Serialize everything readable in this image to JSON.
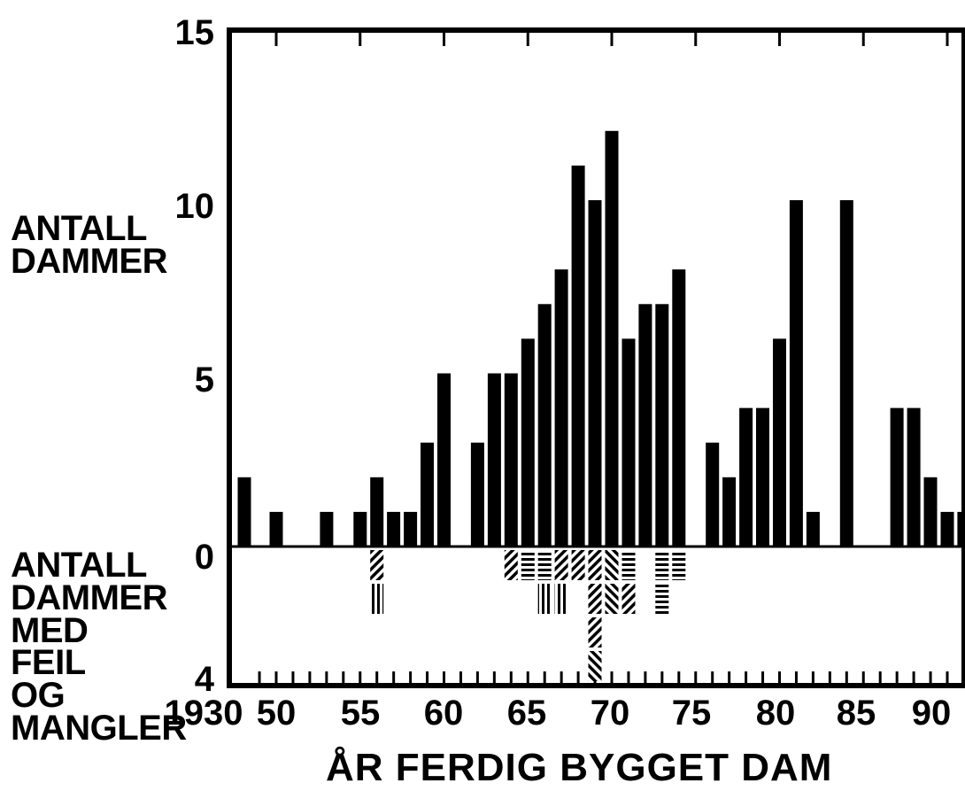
{
  "labels": {
    "ylabel_upper": [
      "ANTALL",
      "DAMMER"
    ],
    "ylabel_lower": [
      "ANTALL",
      "DAMMER",
      "MED",
      "FEIL",
      "OG",
      "MANGLER"
    ],
    "xlabel": "ÅR FERDIG BYGGET DAM"
  },
  "colors": {
    "bars": "#000000",
    "background": "#ffffff"
  },
  "chart_data": {
    "type": "bar",
    "xlabel": "ÅR FERDIG BYGGET DAM",
    "ylabel_upper": "ANTALL DAMMER",
    "ylabel_lower": "ANTALL DAMMER MED FEIL OG MANGLER",
    "y_ticks_upper": [
      "15",
      "10",
      "5",
      "0"
    ],
    "y_tick_lower": "4",
    "x_tick_labels": [
      "1930",
      "50",
      "55",
      "60",
      "65",
      "70",
      "75",
      "80",
      "85",
      "90"
    ],
    "ylim_upper": [
      0,
      15
    ],
    "ylim_lower": [
      0,
      4
    ],
    "series": [
      {
        "values": [
          {
            "category": "1930-49",
            "value": 2
          },
          {
            "x": 1950,
            "value": 1
          },
          {
            "x": 1953,
            "value": 1
          },
          {
            "x": 1955,
            "value": 1
          },
          {
            "x": 1956,
            "value": 2
          },
          {
            "x": 1957,
            "value": 1
          },
          {
            "x": 1958,
            "value": 1
          },
          {
            "x": 1959,
            "value": 3
          },
          {
            "x": 1960,
            "value": 5
          },
          {
            "x": 1962,
            "value": 3
          },
          {
            "x": 1963,
            "value": 5
          },
          {
            "x": 1964,
            "value": 5
          },
          {
            "x": 1965,
            "value": 6
          },
          {
            "x": 1966,
            "value": 7
          },
          {
            "x": 1967,
            "value": 8
          },
          {
            "x": 1968,
            "value": 11
          },
          {
            "x": 1969,
            "value": 10
          },
          {
            "x": 1970,
            "value": 12
          },
          {
            "x": 1971,
            "value": 6
          },
          {
            "x": 1972,
            "value": 7
          },
          {
            "x": 1973,
            "value": 7
          },
          {
            "x": 1974,
            "value": 8
          },
          {
            "x": 1976,
            "value": 3
          },
          {
            "x": 1977,
            "value": 2
          },
          {
            "x": 1978,
            "value": 4
          },
          {
            "x": 1979,
            "value": 4
          },
          {
            "x": 1980,
            "value": 6
          },
          {
            "x": 1981,
            "value": 10
          },
          {
            "x": 1982,
            "value": 1
          },
          {
            "x": 1984,
            "value": 10
          },
          {
            "x": 1987,
            "value": 4
          },
          {
            "x": 1988,
            "value": 4
          },
          {
            "x": 1989,
            "value": 2
          },
          {
            "x": 1990,
            "value": 1
          },
          {
            "x": 1991,
            "value": 1
          }
        ]
      },
      {
        "values": [
          {
            "x": 1956,
            "value": 2,
            "patterns": [
              "diag",
              "vert"
            ]
          },
          {
            "x": 1964,
            "value": 1,
            "patterns": [
              "diag"
            ]
          },
          {
            "x": 1965,
            "value": 1,
            "patterns": [
              "horiz"
            ]
          },
          {
            "x": 1966,
            "value": 2,
            "patterns": [
              "horiz",
              "vert"
            ]
          },
          {
            "x": 1967,
            "value": 2,
            "patterns": [
              "diag",
              "vert"
            ]
          },
          {
            "x": 1968,
            "value": 1,
            "patterns": [
              "diag"
            ]
          },
          {
            "x": 1969,
            "value": 4,
            "patterns": [
              "diag",
              "diag",
              "diag",
              "diag2"
            ]
          },
          {
            "x": 1970,
            "value": 2,
            "patterns": [
              "diag2",
              "diag2"
            ]
          },
          {
            "x": 1971,
            "value": 2,
            "patterns": [
              "horiz",
              "diag"
            ]
          },
          {
            "x": 1973,
            "value": 2,
            "patterns": [
              "horiz",
              "horiz"
            ]
          },
          {
            "x": 1974,
            "value": 1,
            "patterns": [
              "horiz"
            ]
          }
        ]
      }
    ]
  }
}
